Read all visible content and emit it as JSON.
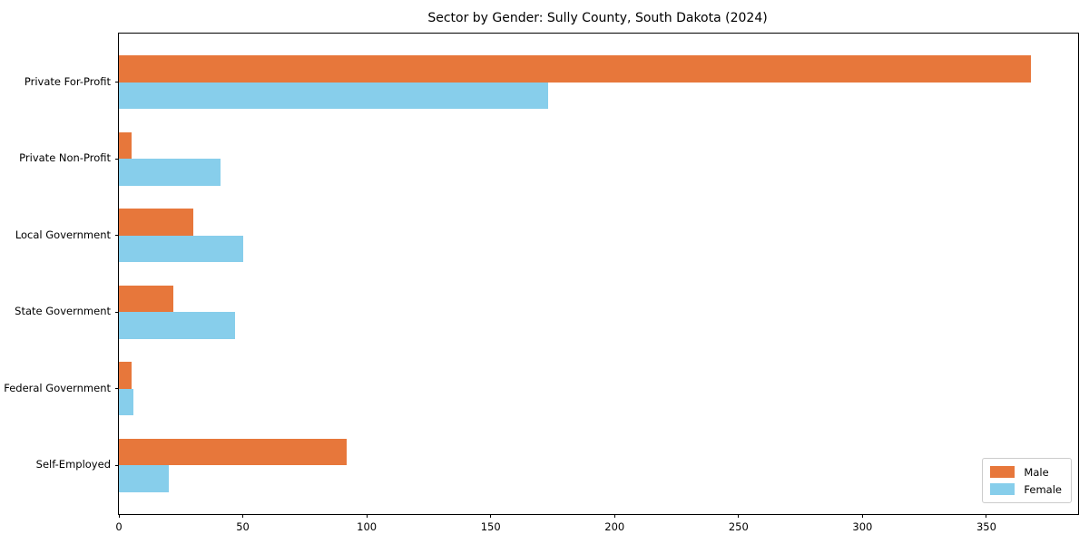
{
  "chart_data": {
    "type": "bar",
    "orientation": "horizontal",
    "title": "Sector by Gender: Sully County, South Dakota (2024)",
    "categories": [
      "Private For-Profit",
      "Private Non-Profit",
      "Local Government",
      "State Government",
      "Federal Government",
      "Self-Employed"
    ],
    "series": [
      {
        "name": "Male",
        "color": "#e7773b",
        "values": [
          368,
          5,
          30,
          22,
          5,
          92
        ]
      },
      {
        "name": "Female",
        "color": "#87ceeb",
        "values": [
          173,
          41,
          50,
          47,
          6,
          20
        ]
      }
    ],
    "xlabel": "",
    "ylabel": "",
    "xlim": [
      0,
      387
    ],
    "xticks": [
      0,
      50,
      100,
      150,
      200,
      250,
      300,
      350
    ],
    "grid": false,
    "legend_position": "lower right",
    "axis_color": "#000000",
    "text_color": "#000000",
    "background": "#ffffff"
  }
}
